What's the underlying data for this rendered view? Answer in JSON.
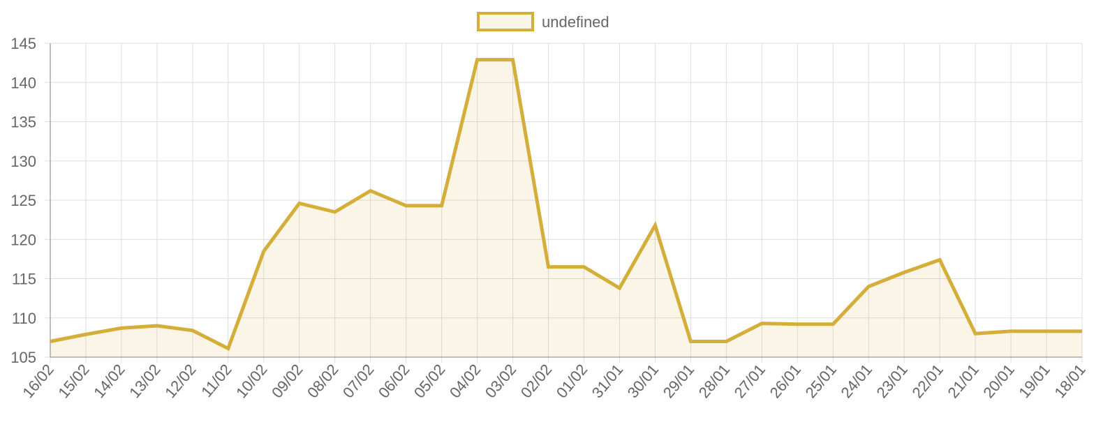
{
  "chart_data": {
    "type": "line",
    "categories": [
      "16/02",
      "15/02",
      "14/02",
      "13/02",
      "12/02",
      "11/02",
      "10/02",
      "09/02",
      "08/02",
      "07/02",
      "06/02",
      "05/02",
      "04/02",
      "03/02",
      "02/02",
      "01/02",
      "31/01",
      "30/01",
      "29/01",
      "28/01",
      "27/01",
      "26/01",
      "25/01",
      "24/01",
      "23/01",
      "22/01",
      "21/01",
      "20/01",
      "19/01",
      "18/01"
    ],
    "series": [
      {
        "name": "undefined",
        "color": "#d4ae38",
        "values": [
          107.0,
          107.9,
          108.7,
          109.0,
          108.4,
          106.1,
          118.5,
          124.6,
          123.5,
          126.2,
          124.3,
          124.3,
          142.9,
          142.9,
          116.5,
          116.5,
          113.8,
          121.8,
          107.0,
          107.0,
          109.3,
          109.2,
          109.2,
          114.0,
          115.8,
          117.4,
          108.0,
          108.3,
          108.3,
          108.3
        ]
      }
    ],
    "ylim": [
      105,
      145
    ],
    "yticks": [
      105,
      110,
      115,
      120,
      125,
      130,
      135,
      140,
      145
    ],
    "grid": true,
    "fill": true,
    "legend": "top"
  }
}
